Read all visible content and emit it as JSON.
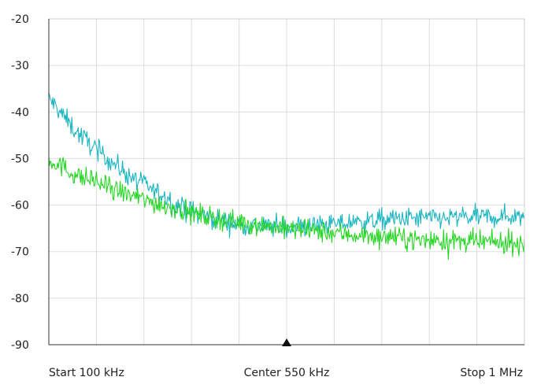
{
  "chart_data": {
    "type": "line",
    "x_axis": {
      "min_khz": 100,
      "max_khz": 1000,
      "center_khz": 550,
      "labels": {
        "start": "Start 100 kHz",
        "center": "Center 550 kHz",
        "stop": "Stop 1 MHz"
      },
      "divisions": 10
    },
    "y_axis": {
      "min": -90,
      "max": -20,
      "step": 10,
      "tick_labels": [
        "-20",
        "-30",
        "-40",
        "-50",
        "-60",
        "-70",
        "-80",
        "-90"
      ]
    },
    "grid": true,
    "center_marker": true,
    "series": [
      {
        "color": "#1ab5c0",
        "noise_amplitude": 1.6,
        "x_khz": [
          100,
          150,
          200,
          250,
          300,
          350,
          400,
          450,
          500,
          550,
          600,
          650,
          700,
          750,
          800,
          850,
          900,
          950,
          1000
        ],
        "y": [
          -37,
          -44,
          -49,
          -53.5,
          -57,
          -60.5,
          -62.5,
          -64,
          -64.5,
          -64.7,
          -64.5,
          -64,
          -63.5,
          -63,
          -62.8,
          -62.8,
          -62.6,
          -62.5,
          -62.3
        ]
      },
      {
        "color": "#27d624",
        "noise_amplitude": 1.6,
        "x_khz": [
          100,
          150,
          200,
          250,
          300,
          350,
          400,
          450,
          500,
          550,
          600,
          650,
          700,
          750,
          800,
          850,
          900,
          950,
          1000
        ],
        "y": [
          -50,
          -53.5,
          -55.5,
          -57.8,
          -59.5,
          -61,
          -62.5,
          -63.5,
          -64.3,
          -65,
          -65.6,
          -66.1,
          -66.6,
          -67,
          -67.4,
          -67.7,
          -67.9,
          -68.1,
          -68.3
        ]
      }
    ]
  }
}
